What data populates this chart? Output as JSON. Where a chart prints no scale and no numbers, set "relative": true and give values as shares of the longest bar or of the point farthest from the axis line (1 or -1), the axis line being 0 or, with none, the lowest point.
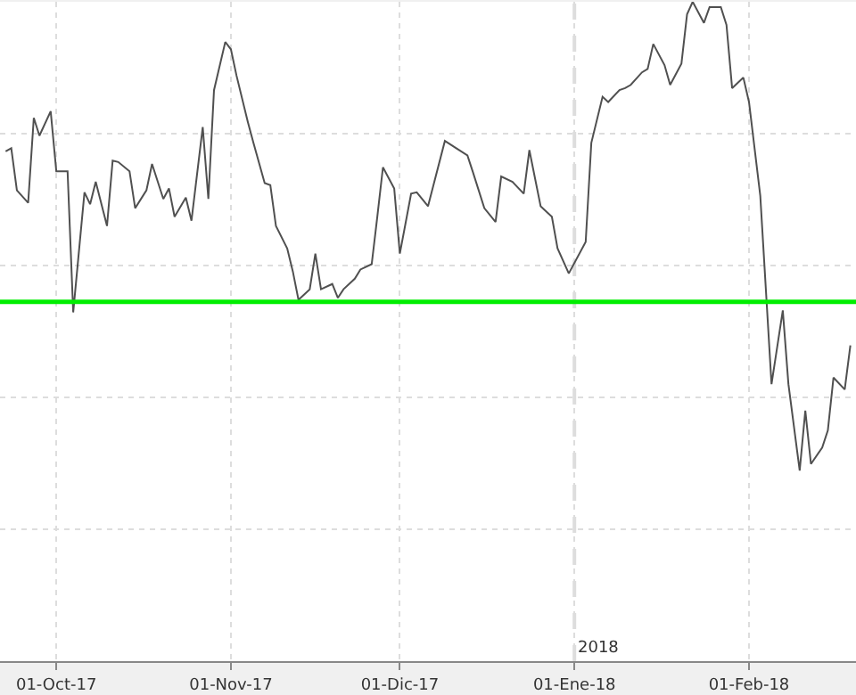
{
  "chart_data": {
    "type": "line",
    "relative": true,
    "grid": true,
    "line_style": "solid",
    "xlim": [
      "2017-09-21",
      "2018-02-20"
    ],
    "xticks": [
      {
        "value": "2017-10-01",
        "label": "01-Oct-17"
      },
      {
        "value": "2017-11-01",
        "label": "01-Nov-17"
      },
      {
        "value": "2017-12-01",
        "label": "01-Dic-17"
      },
      {
        "value": "2018-01-01",
        "label": "01-Ene-18"
      },
      {
        "value": "2018-02-01",
        "label": "01-Feb-18"
      }
    ],
    "x": [
      "2017-09-22",
      "2017-09-23",
      "2017-09-24",
      "2017-09-26",
      "2017-09-27",
      "2017-09-28",
      "2017-09-30",
      "2017-10-01",
      "2017-10-03",
      "2017-10-04",
      "2017-10-06",
      "2017-10-07",
      "2017-10-08",
      "2017-10-10",
      "2017-10-11",
      "2017-10-12",
      "2017-10-14",
      "2017-10-15",
      "2017-10-17",
      "2017-10-18",
      "2017-10-20",
      "2017-10-21",
      "2017-10-22",
      "2017-10-24",
      "2017-10-25",
      "2017-10-27",
      "2017-10-28",
      "2017-10-29",
      "2017-10-31",
      "2017-11-01",
      "2017-11-02",
      "2017-11-04",
      "2017-11-05",
      "2017-11-07",
      "2017-11-08",
      "2017-11-09",
      "2017-11-11",
      "2017-11-12",
      "2017-11-13",
      "2017-11-15",
      "2017-11-16",
      "2017-11-17",
      "2017-11-19",
      "2017-11-20",
      "2017-11-21",
      "2017-11-23",
      "2017-11-24",
      "2017-11-26",
      "2017-11-27",
      "2017-11-28",
      "2017-11-30",
      "2017-12-01",
      "2017-12-03",
      "2017-12-04",
      "2017-12-06",
      "2017-12-09",
      "2017-12-13",
      "2017-12-14",
      "2017-12-16",
      "2017-12-18",
      "2017-12-19",
      "2017-12-21",
      "2017-12-23",
      "2017-12-24",
      "2017-12-26",
      "2017-12-28",
      "2017-12-29",
      "2017-12-31",
      "2018-01-03",
      "2018-01-04",
      "2018-01-06",
      "2018-01-07",
      "2018-01-09",
      "2018-01-10",
      "2018-01-11",
      "2018-01-13",
      "2018-01-14",
      "2018-01-15",
      "2018-01-17",
      "2018-01-18",
      "2018-01-20",
      "2018-01-21",
      "2018-01-22",
      "2018-01-24",
      "2018-01-25",
      "2018-01-27",
      "2018-01-28",
      "2018-01-29",
      "2018-01-31",
      "2018-02-01",
      "2018-02-03",
      "2018-02-05",
      "2018-02-07",
      "2018-02-08",
      "2018-02-10",
      "2018-02-11",
      "2018-02-12",
      "2018-02-14",
      "2018-02-15",
      "2018-02-16",
      "2018-02-18",
      "2018-02-19"
    ],
    "series": [
      {
        "color": "#505050",
        "values": [
          0.773,
          0.778,
          0.714,
          0.695,
          0.824,
          0.797,
          0.834,
          0.743,
          0.743,
          0.529,
          0.711,
          0.693,
          0.727,
          0.66,
          0.759,
          0.757,
          0.743,
          0.687,
          0.714,
          0.754,
          0.701,
          0.717,
          0.674,
          0.703,
          0.668,
          0.81,
          0.701,
          0.866,
          0.939,
          0.928,
          0.888,
          0.818,
          0.786,
          0.725,
          0.722,
          0.66,
          0.626,
          0.591,
          0.548,
          0.564,
          0.618,
          0.564,
          0.572,
          0.551,
          0.564,
          0.58,
          0.594,
          0.602,
          0.674,
          0.749,
          0.717,
          0.618,
          0.709,
          0.711,
          0.69,
          0.789,
          0.767,
          0.741,
          0.687,
          0.666,
          0.735,
          0.727,
          0.709,
          0.775,
          0.69,
          0.674,
          0.626,
          0.588,
          0.636,
          0.786,
          0.856,
          0.848,
          0.866,
          0.869,
          0.874,
          0.893,
          0.898,
          0.936,
          0.904,
          0.874,
          0.906,
          0.981,
          1.0,
          0.968,
          0.992,
          0.992,
          0.965,
          0.869,
          0.885,
          0.848,
          0.706,
          0.42,
          0.532,
          0.42,
          0.289,
          0.38,
          0.299,
          0.324,
          0.35,
          0.43,
          0.412,
          0.479
        ]
      }
    ],
    "ref_lines": [
      {
        "axis": "y",
        "value": 0.545,
        "color": "#00ee00",
        "line_style": "solid"
      },
      {
        "axis": "x",
        "value": "2018-01-01",
        "label": "2018",
        "color": "#dddddd",
        "line_style": "dashed"
      }
    ]
  }
}
